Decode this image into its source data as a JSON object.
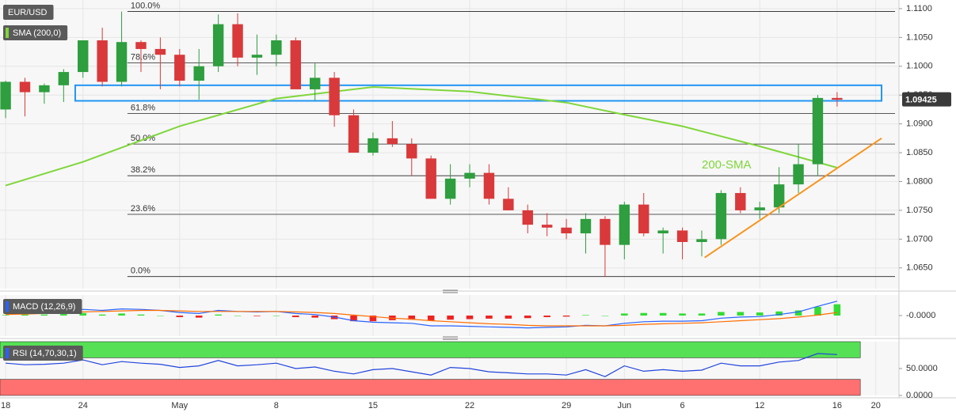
{
  "chart_data": [
    {
      "type": "candlestick",
      "title": "EUR/USD",
      "up_color": "#2e9e3e",
      "down_color": "#d9393b",
      "open": [
        1.0925,
        1.0973,
        1.0955,
        1.0967,
        1.099,
        1.1045,
        1.0973,
        1.1042,
        1.103,
        1.102,
        1.0975,
        1.1,
        1.1073,
        1.1015,
        1.102,
        1.1045,
        1.096,
        1.098,
        1.0915,
        1.085,
        1.0875,
        1.0865,
        1.084,
        1.077,
        1.0805,
        1.0815,
        1.077,
        1.075,
        1.0725,
        1.072,
        1.071,
        1.0735,
        1.069,
        1.076,
        1.071,
        1.0715,
        1.0695,
        1.07,
        1.078,
        1.075,
        1.0755,
        1.0795,
        1.083,
        1.0945
      ],
      "high": [
        1.0975,
        1.098,
        1.097,
        1.0995,
        1.1045,
        1.1067,
        1.1095,
        1.1045,
        1.105,
        1.103,
        1.103,
        1.109,
        1.1092,
        1.1055,
        1.1055,
        1.105,
        1.1005,
        1.099,
        1.0925,
        1.0885,
        1.0905,
        1.0875,
        1.0845,
        1.083,
        1.083,
        1.083,
        1.079,
        1.076,
        1.0745,
        1.0735,
        1.0745,
        1.074,
        1.0765,
        1.078,
        1.072,
        1.072,
        1.0715,
        1.0785,
        1.079,
        1.0765,
        1.0825,
        1.0865,
        1.095,
        1.0955
      ],
      "low": [
        1.091,
        1.0913,
        1.0935,
        1.0938,
        1.098,
        1.0965,
        1.0965,
        1.099,
        1.096,
        1.0965,
        1.0942,
        1.099,
        1.1,
        1.0985,
        1.1,
        1.0965,
        1.094,
        1.0895,
        1.085,
        1.0845,
        1.086,
        1.081,
        1.077,
        1.076,
        1.079,
        1.076,
        1.075,
        1.071,
        1.0705,
        1.07,
        1.0675,
        1.0635,
        1.0665,
        1.0705,
        1.0675,
        1.0665,
        1.067,
        1.069,
        1.0745,
        1.0735,
        1.0745,
        1.078,
        1.081,
        1.093
      ],
      "close": [
        1.0973,
        1.0955,
        1.0967,
        1.099,
        1.1045,
        1.0973,
        1.1042,
        1.103,
        1.102,
        1.0975,
        1.1,
        1.1073,
        1.1015,
        1.102,
        1.1045,
        1.096,
        1.098,
        1.0915,
        1.085,
        1.0875,
        1.0865,
        1.084,
        1.077,
        1.0805,
        1.0815,
        1.077,
        1.075,
        1.0725,
        1.072,
        1.071,
        1.0735,
        1.069,
        1.076,
        1.071,
        1.0715,
        1.0695,
        1.07,
        1.078,
        1.075,
        1.0755,
        1.0795,
        1.083,
        1.0945,
        1.0942
      ],
      "series": [
        {
          "name": "SMA (200,0)",
          "color": "#7fd63a",
          "x": [
            0,
            4,
            9,
            14,
            19,
            24,
            29,
            32,
            35,
            39,
            43
          ],
          "values": [
            1.0793,
            1.0834,
            1.0896,
            1.0944,
            1.0964,
            1.0956,
            1.0937,
            1.0916,
            1.0896,
            1.0861,
            1.0824
          ]
        }
      ],
      "last_price": 1.09425,
      "annotation": "200-SMA",
      "fib_levels": [
        {
          "label": "100.0%",
          "value": 1.1095
        },
        {
          "label": "78.6%",
          "value": 1.1006
        },
        {
          "label": "61.8%",
          "value": 1.0918
        },
        {
          "label": "50.0%",
          "value": 1.0865
        },
        {
          "label": "38.2%",
          "value": 1.081
        },
        {
          "label": "23.6%",
          "value": 1.0743
        },
        {
          "label": "0.0%",
          "value": 1.0635
        }
      ],
      "zone": {
        "x": [
          3.6,
          45.3
        ],
        "y": [
          1.0967,
          1.094
        ],
        "color": "#2196f3"
      },
      "trendline": {
        "x": [
          36.15,
          45.3
        ],
        "y": [
          1.0668,
          1.0875
        ],
        "color": "#f7941d"
      },
      "xlim": [
        -0.29,
        46.2
      ],
      "xticks": [
        {
          "value": 0,
          "label": "18"
        },
        {
          "value": 4,
          "label": "24"
        },
        {
          "value": 9,
          "label": "May"
        },
        {
          "value": 14,
          "label": "8"
        },
        {
          "value": 19,
          "label": "15"
        },
        {
          "value": 24,
          "label": "22"
        },
        {
          "value": 29,
          "label": "29"
        },
        {
          "value": 32,
          "label": "Jun"
        },
        {
          "value": 35,
          "label": "6"
        },
        {
          "value": 39,
          "label": "12"
        },
        {
          "value": 43,
          "label": "16"
        },
        {
          "value": 45,
          "label": "20"
        }
      ],
      "ylim": [
        1.0614,
        1.1115
      ],
      "yticks": [
        {
          "value": 1.11,
          "label": "1.1100"
        },
        {
          "value": 1.105,
          "label": "1.1050"
        },
        {
          "value": 1.1,
          "label": "1.1000"
        },
        {
          "value": 1.095,
          "label": "1.0950"
        },
        {
          "value": 1.09,
          "label": "1.0900"
        },
        {
          "value": 1.085,
          "label": "1.0850"
        },
        {
          "value": 1.08,
          "label": "1.0800"
        },
        {
          "value": 1.075,
          "label": "1.0750"
        },
        {
          "value": 1.07,
          "label": "1.0700"
        },
        {
          "value": 1.065,
          "label": "1.0650"
        }
      ],
      "grid": true
    },
    {
      "type": "macd",
      "title": "MACD (12,26,9)",
      "title_color": "#2962ff",
      "series": [
        {
          "color": "#2962ff",
          "values": [
            0.0003,
            0.0005,
            0.0006,
            0.0008,
            0.0012,
            0.001,
            0.0013,
            0.0012,
            0.001,
            0.0006,
            0.0004,
            0.001,
            0.0008,
            0.0007,
            0.0008,
            0.0004,
            0.0002,
            -0.0003,
            -0.001,
            -0.0013,
            -0.0014,
            -0.0015,
            -0.002,
            -0.002,
            -0.0021,
            -0.0022,
            -0.0023,
            -0.0024,
            -0.0023,
            -0.0022,
            -0.0019,
            -0.002,
            -0.0015,
            -0.0012,
            -0.0011,
            -0.0011,
            -0.001,
            -0.0005,
            -0.0003,
            -0.0002,
            0.0002,
            0.0007,
            0.0018,
            0.0028
          ]
        },
        {
          "color": "#ff6d00",
          "values": [
            0.0002,
            0.0003,
            0.0004,
            0.0005,
            0.0007,
            0.0008,
            0.0009,
            0.001,
            0.001,
            0.0009,
            0.0008,
            0.0008,
            0.0008,
            0.0008,
            0.0008,
            0.0007,
            0.0006,
            0.0004,
            0.0001,
            -0.0002,
            -0.0005,
            -0.0007,
            -0.001,
            -0.0012,
            -0.0014,
            -0.0016,
            -0.0017,
            -0.0019,
            -0.002,
            -0.002,
            -0.002,
            -0.002,
            -0.0019,
            -0.0017,
            -0.0016,
            -0.0015,
            -0.0014,
            -0.0012,
            -0.001,
            -0.0008,
            -0.0006,
            -0.0003,
            0.0001,
            0.0006
          ]
        }
      ],
      "histogram": [
        0.0001,
        0.0002,
        0.0002,
        0.0003,
        0.0005,
        0.0002,
        0.0004,
        0.0002,
        0,
        -0.0003,
        -0.0004,
        0.0002,
        0,
        -0.0001,
        0,
        -0.0003,
        -0.0004,
        -0.0007,
        -0.0011,
        -0.0011,
        -0.0009,
        -0.0008,
        -0.001,
        -0.0008,
        -0.0007,
        -0.0006,
        -0.0006,
        -0.0005,
        -0.0003,
        -0.0002,
        0.0001,
        0,
        0.0004,
        0.0005,
        0.0005,
        0.0004,
        0.0004,
        0.0007,
        0.0007,
        0.0006,
        0.0008,
        0.001,
        0.0017,
        0.0022
      ],
      "up_color": "#33dd33",
      "down_color": "#ee2222",
      "ylim": [
        -0.004,
        0.004
      ],
      "yticks": [
        {
          "value": 0,
          "label": "-0.0000"
        }
      ]
    },
    {
      "type": "rsi",
      "title": "RSI (14,70,30,1)",
      "title_color": "#2962ff",
      "series": [
        {
          "color": "#2244dd",
          "values": [
            60,
            57,
            58,
            60,
            66,
            57,
            63,
            60,
            58,
            52,
            55,
            65,
            55,
            57,
            60,
            50,
            53,
            45,
            40,
            48,
            50,
            44,
            38,
            52,
            50,
            44,
            42,
            40,
            40,
            38,
            48,
            35,
            55,
            45,
            48,
            45,
            47,
            60,
            55,
            55,
            62,
            65,
            78,
            76
          ]
        }
      ],
      "bands": [
        {
          "range": [
            70,
            100
          ],
          "color": "#55e055"
        },
        {
          "range": [
            0,
            30
          ],
          "color": "#ff7070"
        }
      ],
      "ylim": [
        0,
        100
      ],
      "yticks": [
        {
          "value": 50,
          "label": "50.0000"
        },
        {
          "value": 0,
          "label": "0.0000"
        }
      ]
    }
  ]
}
